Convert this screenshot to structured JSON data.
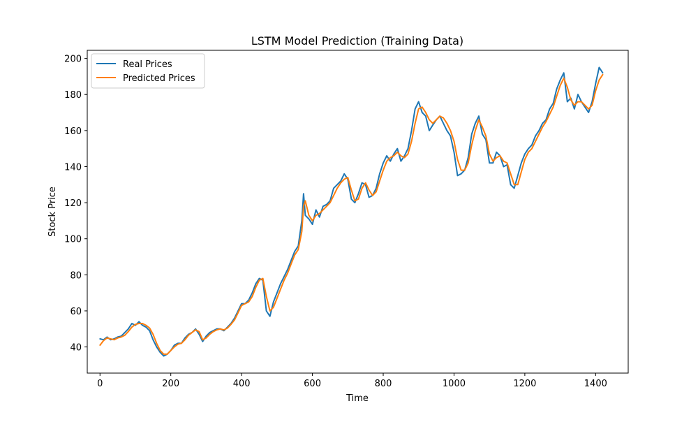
{
  "chart_data": {
    "type": "line",
    "title": "LSTM Model Prediction (Training Data)",
    "xlabel": "Time",
    "ylabel": "Stock Price",
    "xlim": [
      -36,
      1492
    ],
    "ylim": [
      25.5,
      204.5
    ],
    "xticks": [
      0,
      200,
      400,
      600,
      800,
      1000,
      1200,
      1400
    ],
    "yticks": [
      40,
      60,
      80,
      100,
      120,
      140,
      160,
      180,
      200
    ],
    "grid": false,
    "legend_position": "top-left",
    "series": [
      {
        "name": "Real Prices",
        "color": "#1f77b4",
        "x": [
          0,
          10,
          20,
          30,
          40,
          50,
          60,
          70,
          80,
          90,
          100,
          110,
          120,
          130,
          140,
          150,
          160,
          170,
          180,
          190,
          200,
          210,
          220,
          230,
          240,
          250,
          260,
          270,
          280,
          290,
          300,
          310,
          320,
          330,
          340,
          350,
          360,
          370,
          380,
          390,
          400,
          410,
          420,
          430,
          440,
          450,
          460,
          470,
          480,
          490,
          500,
          510,
          520,
          530,
          540,
          550,
          560,
          570,
          575,
          580,
          590,
          600,
          610,
          620,
          630,
          640,
          650,
          660,
          670,
          680,
          690,
          700,
          710,
          720,
          730,
          740,
          750,
          760,
          770,
          780,
          790,
          800,
          810,
          820,
          830,
          840,
          850,
          860,
          870,
          880,
          890,
          900,
          910,
          920,
          930,
          940,
          950,
          960,
          970,
          980,
          990,
          1000,
          1010,
          1020,
          1030,
          1040,
          1050,
          1060,
          1070,
          1080,
          1090,
          1100,
          1110,
          1120,
          1130,
          1140,
          1150,
          1160,
          1170,
          1180,
          1190,
          1200,
          1210,
          1220,
          1230,
          1240,
          1250,
          1260,
          1270,
          1280,
          1290,
          1300,
          1310,
          1320,
          1330,
          1340,
          1350,
          1360,
          1370,
          1380,
          1390,
          1400,
          1410,
          1420
        ],
        "values": [
          44.5,
          44,
          45.5,
          44,
          44.5,
          45.5,
          46,
          48,
          50,
          53,
          52,
          54,
          52,
          51,
          49,
          44,
          40,
          37,
          35,
          36,
          38,
          41,
          42,
          42,
          45,
          47,
          48,
          50,
          47,
          43,
          46,
          48,
          49,
          50,
          50,
          49,
          51,
          53,
          56,
          60,
          64,
          64,
          66,
          70,
          75,
          78,
          77,
          60,
          57,
          65,
          70,
          75,
          79,
          83,
          88,
          93,
          96,
          110,
          125,
          113,
          111,
          108,
          116,
          112,
          118,
          119,
          121,
          128,
          130,
          132,
          136,
          133,
          122,
          120,
          125,
          131,
          130,
          123,
          124,
          128,
          136,
          142,
          146,
          143,
          147,
          150,
          143,
          146,
          150,
          160,
          172,
          176,
          170,
          168,
          160,
          163,
          166,
          168,
          164,
          160,
          157,
          148,
          135,
          136,
          138,
          145,
          158,
          164,
          168,
          158,
          155,
          142,
          142,
          148,
          146,
          140,
          141,
          130,
          128,
          135,
          142,
          147,
          150,
          152,
          157,
          160,
          164,
          166,
          172,
          175,
          183,
          188,
          192,
          176,
          178,
          172,
          180,
          176,
          173,
          170,
          176,
          186,
          195,
          192
        ]
      },
      {
        "name": "Predicted Prices",
        "color": "#ff7f0e",
        "x": [
          0,
          10,
          20,
          30,
          40,
          50,
          60,
          70,
          80,
          90,
          100,
          110,
          120,
          130,
          140,
          150,
          160,
          170,
          180,
          190,
          200,
          210,
          220,
          230,
          240,
          250,
          260,
          270,
          280,
          290,
          300,
          310,
          320,
          330,
          340,
          350,
          360,
          370,
          380,
          390,
          400,
          410,
          420,
          430,
          440,
          450,
          460,
          470,
          480,
          490,
          500,
          510,
          520,
          530,
          540,
          550,
          560,
          570,
          575,
          580,
          590,
          600,
          610,
          620,
          630,
          640,
          650,
          660,
          670,
          680,
          690,
          700,
          710,
          720,
          730,
          740,
          750,
          760,
          770,
          780,
          790,
          800,
          810,
          820,
          830,
          840,
          850,
          860,
          870,
          880,
          890,
          900,
          910,
          920,
          930,
          940,
          950,
          960,
          970,
          980,
          990,
          1000,
          1010,
          1020,
          1030,
          1040,
          1050,
          1060,
          1070,
          1080,
          1090,
          1100,
          1110,
          1120,
          1130,
          1140,
          1150,
          1160,
          1170,
          1180,
          1190,
          1200,
          1210,
          1220,
          1230,
          1240,
          1250,
          1260,
          1270,
          1280,
          1290,
          1300,
          1310,
          1320,
          1330,
          1340,
          1350,
          1360,
          1370,
          1380,
          1390,
          1400,
          1410,
          1420
        ],
        "values": [
          41,
          43.5,
          45,
          44.5,
          44,
          45,
          45.5,
          46.5,
          48.5,
          51,
          52.5,
          53,
          53,
          52,
          50.5,
          47,
          42,
          38,
          36,
          36,
          38,
          40,
          41.5,
          42,
          44,
          46.5,
          48,
          49.5,
          48.5,
          44,
          45,
          47,
          48.5,
          49.5,
          50,
          49.5,
          50.5,
          52.5,
          55,
          59,
          63,
          64,
          65,
          68,
          73,
          77,
          78,
          68,
          60,
          62,
          67,
          72,
          77,
          81,
          86,
          91,
          94,
          104,
          118,
          121,
          113,
          110,
          113,
          114,
          116,
          118,
          120,
          124,
          128,
          131,
          133,
          134,
          127,
          121,
          122,
          128,
          131,
          127,
          124,
          126,
          132,
          138,
          143,
          145,
          146,
          148,
          146,
          145,
          147,
          154,
          164,
          172,
          173,
          170,
          166,
          164,
          166,
          168,
          167,
          164,
          160,
          154,
          144,
          138,
          138,
          142,
          152,
          160,
          166,
          162,
          157,
          147,
          143,
          145,
          146,
          143,
          142,
          136,
          130,
          130,
          137,
          144,
          148,
          150,
          154,
          158,
          162,
          165,
          169,
          173,
          179,
          185,
          189,
          184,
          177,
          174,
          176,
          176,
          174,
          172,
          174,
          182,
          188,
          191
        ]
      }
    ]
  }
}
